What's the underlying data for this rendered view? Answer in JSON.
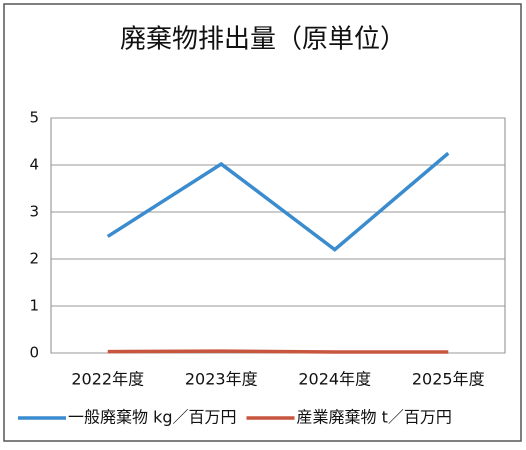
{
  "chart_data": {
    "type": "line",
    "title": "廃棄物排出量（原単位）",
    "categories": [
      "2022年度",
      "2023年度",
      "2024年度",
      "2025年度"
    ],
    "series": [
      {
        "name": "一般廃棄物 kg／百万円",
        "color": "#3a8ccf",
        "values": [
          2.48,
          4.02,
          2.2,
          4.25
        ]
      },
      {
        "name": "産業廃棄物 t／百万円",
        "color": "#c8553d",
        "values": [
          0.03,
          0.04,
          0.02,
          0.02
        ]
      }
    ],
    "ylim": [
      0,
      5
    ],
    "yticks": [
      0,
      1,
      2,
      3,
      4,
      5
    ],
    "grid": true,
    "legend": "bottom"
  }
}
